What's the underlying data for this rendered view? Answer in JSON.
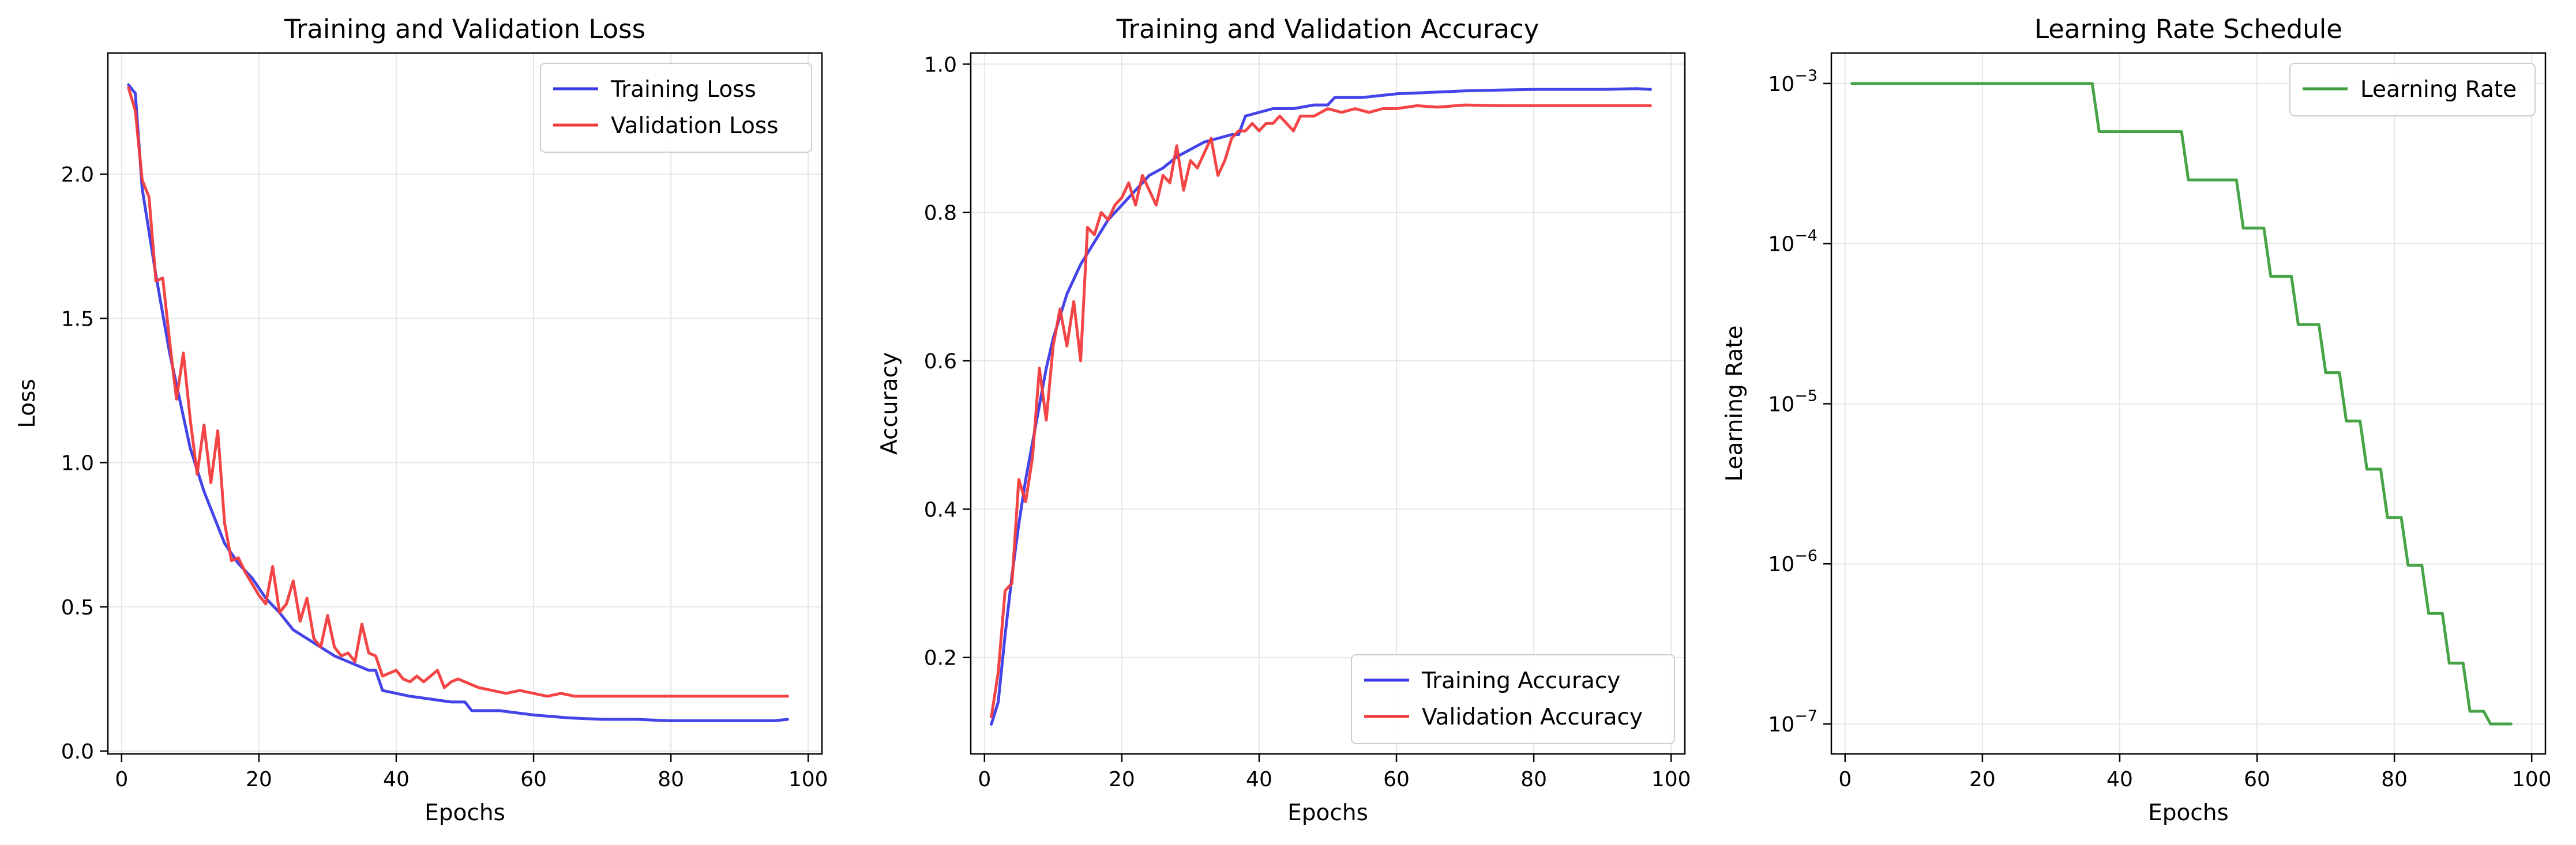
{
  "chart_data": [
    {
      "type": "line",
      "title": "Training and Validation Loss",
      "xlabel": "Epochs",
      "ylabel": "Loss",
      "xlim": [
        -2,
        102
      ],
      "ylim": [
        -0.01,
        2.42
      ],
      "xticks": [
        0,
        20,
        40,
        60,
        80,
        100
      ],
      "yticks": [
        0.0,
        0.5,
        1.0,
        1.5,
        2.0,
        2.5
      ],
      "ytick_labels": [
        "0.0",
        "0.5",
        "1.0",
        "1.5",
        "2.0"
      ],
      "grid": true,
      "legend": "top-right",
      "series": [
        {
          "name": "Training Loss",
          "color": "#3a3ae8",
          "x": [
            1,
            2,
            3,
            5,
            7,
            10,
            12,
            15,
            17,
            19,
            21,
            23,
            25,
            27,
            29,
            31,
            33,
            35,
            36,
            37,
            38,
            40,
            42,
            45,
            48,
            50,
            51,
            55,
            60,
            65,
            70,
            75,
            80,
            85,
            90,
            95,
            97
          ],
          "y": [
            2.31,
            2.28,
            1.95,
            1.65,
            1.38,
            1.05,
            0.9,
            0.72,
            0.65,
            0.6,
            0.53,
            0.48,
            0.42,
            0.39,
            0.36,
            0.33,
            0.31,
            0.29,
            0.28,
            0.28,
            0.21,
            0.2,
            0.19,
            0.18,
            0.17,
            0.17,
            0.14,
            0.14,
            0.125,
            0.115,
            0.11,
            0.11,
            0.105,
            0.105,
            0.105,
            0.105,
            0.11
          ]
        },
        {
          "name": "Validation Loss",
          "color": "#f23b3b",
          "x": [
            1,
            2,
            3,
            4,
            5,
            6,
            7,
            8,
            9,
            10,
            11,
            12,
            13,
            14,
            15,
            16,
            17,
            18,
            19,
            20,
            21,
            22,
            23,
            24,
            25,
            26,
            27,
            28,
            29,
            30,
            31,
            32,
            33,
            34,
            35,
            36,
            37,
            38,
            39,
            40,
            41,
            42,
            43,
            44,
            45,
            46,
            47,
            48,
            49,
            50,
            52,
            54,
            56,
            58,
            60,
            62,
            64,
            66,
            68,
            70,
            75,
            80,
            85,
            90,
            95,
            97
          ],
          "y": [
            2.3,
            2.22,
            1.98,
            1.92,
            1.63,
            1.64,
            1.42,
            1.22,
            1.38,
            1.15,
            0.96,
            1.13,
            0.93,
            1.11,
            0.79,
            0.66,
            0.67,
            0.62,
            0.58,
            0.54,
            0.51,
            0.64,
            0.48,
            0.51,
            0.59,
            0.45,
            0.53,
            0.39,
            0.36,
            0.47,
            0.36,
            0.33,
            0.34,
            0.31,
            0.44,
            0.34,
            0.33,
            0.26,
            0.27,
            0.28,
            0.25,
            0.24,
            0.26,
            0.24,
            0.26,
            0.28,
            0.22,
            0.24,
            0.25,
            0.24,
            0.22,
            0.21,
            0.2,
            0.21,
            0.2,
            0.19,
            0.2,
            0.19,
            0.19,
            0.19,
            0.19,
            0.19,
            0.19,
            0.19,
            0.19,
            0.19
          ]
        }
      ]
    },
    {
      "type": "line",
      "title": "Training and Validation Accuracy",
      "xlabel": "Epochs",
      "ylabel": "Accuracy",
      "xlim": [
        -2,
        102
      ],
      "ylim": [
        0.07,
        1.015
      ],
      "xticks": [
        0,
        20,
        40,
        60,
        80,
        100
      ],
      "yticks": [
        0.2,
        0.4,
        0.6,
        0.8,
        1.0
      ],
      "ytick_labels": [
        "0.2",
        "0.4",
        "0.6",
        "0.8",
        "1.0"
      ],
      "grid": true,
      "legend": "bottom-right",
      "series": [
        {
          "name": "Training Accuracy",
          "color": "#3a3ae8",
          "x": [
            1,
            2,
            3,
            4,
            5,
            6,
            7,
            8,
            9,
            10,
            12,
            14,
            16,
            18,
            20,
            22,
            24,
            26,
            28,
            30,
            32,
            34,
            36,
            37,
            38,
            40,
            42,
            45,
            48,
            50,
            51,
            55,
            60,
            65,
            70,
            75,
            80,
            85,
            90,
            95,
            97
          ],
          "y": [
            0.11,
            0.14,
            0.23,
            0.31,
            0.38,
            0.44,
            0.49,
            0.54,
            0.59,
            0.63,
            0.69,
            0.73,
            0.76,
            0.79,
            0.81,
            0.83,
            0.85,
            0.86,
            0.875,
            0.885,
            0.895,
            0.9,
            0.905,
            0.905,
            0.93,
            0.935,
            0.94,
            0.94,
            0.945,
            0.945,
            0.955,
            0.955,
            0.96,
            0.962,
            0.964,
            0.965,
            0.966,
            0.966,
            0.966,
            0.967,
            0.966
          ]
        },
        {
          "name": "Validation Accuracy",
          "color": "#f23b3b",
          "x": [
            1,
            2,
            3,
            4,
            5,
            6,
            7,
            8,
            9,
            10,
            11,
            12,
            13,
            14,
            15,
            16,
            17,
            18,
            19,
            20,
            21,
            22,
            23,
            24,
            25,
            26,
            27,
            28,
            29,
            30,
            31,
            32,
            33,
            34,
            35,
            36,
            37,
            38,
            39,
            40,
            41,
            42,
            43,
            44,
            45,
            46,
            47,
            48,
            50,
            52,
            54,
            56,
            58,
            60,
            63,
            66,
            70,
            75,
            80,
            85,
            90,
            95,
            97
          ],
          "y": [
            0.12,
            0.18,
            0.29,
            0.3,
            0.44,
            0.41,
            0.47,
            0.59,
            0.52,
            0.62,
            0.67,
            0.62,
            0.68,
            0.6,
            0.78,
            0.77,
            0.8,
            0.79,
            0.81,
            0.82,
            0.84,
            0.81,
            0.85,
            0.83,
            0.81,
            0.85,
            0.84,
            0.89,
            0.83,
            0.87,
            0.86,
            0.88,
            0.9,
            0.85,
            0.87,
            0.9,
            0.91,
            0.91,
            0.92,
            0.91,
            0.92,
            0.92,
            0.93,
            0.92,
            0.91,
            0.93,
            0.93,
            0.93,
            0.94,
            0.935,
            0.94,
            0.935,
            0.94,
            0.94,
            0.944,
            0.942,
            0.945,
            0.944,
            0.944,
            0.944,
            0.944,
            0.944,
            0.944
          ]
        }
      ]
    },
    {
      "type": "line",
      "title": "Learning Rate Schedule",
      "xlabel": "Epochs",
      "ylabel": "Learning Rate",
      "yscale": "log",
      "xlim": [
        -2,
        102
      ],
      "ylim": [
        6.5e-08,
        0.00155
      ],
      "xticks": [
        0,
        20,
        40,
        60,
        80,
        100
      ],
      "yticks": [
        1e-07,
        1e-06,
        1e-05,
        0.0001,
        0.001
      ],
      "ytick_labels": [
        "10",
        "10",
        "10",
        "10",
        "10"
      ],
      "ytick_exponents": [
        "−7",
        "−6",
        "−5",
        "−4",
        "−3"
      ],
      "grid": true,
      "legend": "top-right",
      "series": [
        {
          "name": "Learning Rate",
          "color": "#3c9e3c",
          "step": true,
          "x": [
            1,
            36,
            37,
            49,
            50,
            57,
            58,
            61,
            62,
            65,
            66,
            69,
            70,
            72,
            73,
            75,
            76,
            78,
            79,
            81,
            82,
            84,
            85,
            87,
            88,
            90,
            91,
            93,
            94,
            97
          ],
          "y": [
            0.001,
            0.001,
            0.0005,
            0.0005,
            0.00025,
            0.00025,
            0.000125,
            0.000125,
            6.25e-05,
            6.25e-05,
            3.125e-05,
            3.125e-05,
            1.5625e-05,
            1.5625e-05,
            7.8e-06,
            7.8e-06,
            3.9e-06,
            3.9e-06,
            1.95e-06,
            1.95e-06,
            9.8e-07,
            9.8e-07,
            4.9e-07,
            4.9e-07,
            2.4e-07,
            2.4e-07,
            1.2e-07,
            1.2e-07,
            1e-07,
            1e-07
          ]
        }
      ]
    }
  ]
}
